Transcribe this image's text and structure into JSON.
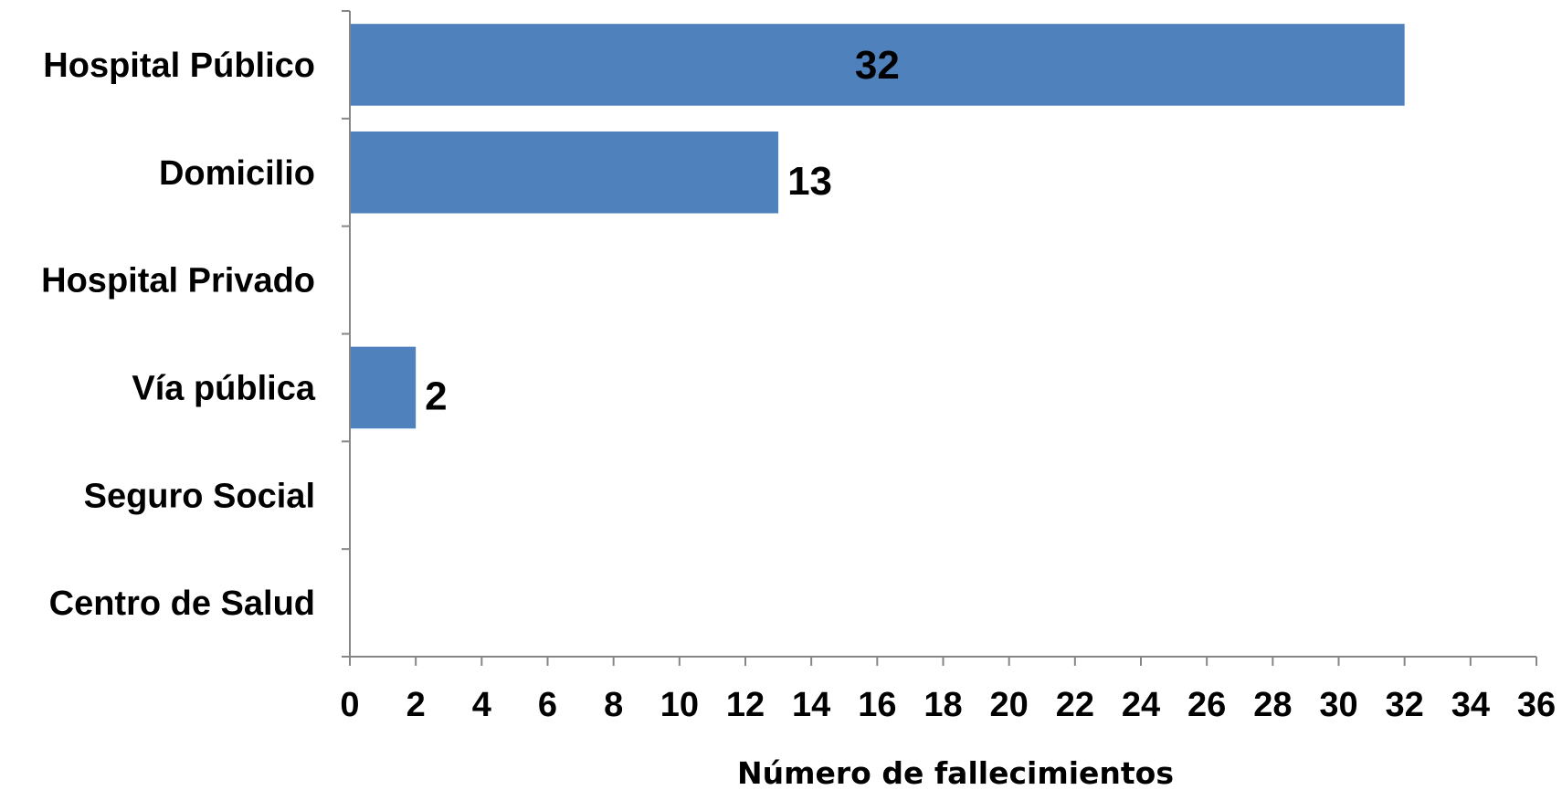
{
  "chart_data": {
    "type": "bar",
    "orientation": "horizontal",
    "categories": [
      "Hospital Público",
      "Domicilio",
      "Hospital Privado",
      "Vía pública",
      "Seguro Social",
      "Centro de Salud"
    ],
    "values": [
      32,
      13,
      0,
      2,
      0,
      0
    ],
    "data_labels": [
      "32",
      "13",
      "",
      "2",
      "",
      ""
    ],
    "xlabel": "Número de fallecimientos",
    "ylabel": "",
    "xlim": [
      0,
      36
    ],
    "xticks": [
      0,
      2,
      4,
      6,
      8,
      10,
      12,
      14,
      16,
      18,
      20,
      22,
      24,
      26,
      28,
      30,
      32,
      34,
      36
    ],
    "grid": false,
    "legend": "none",
    "bar_color": "#4f81bd"
  }
}
